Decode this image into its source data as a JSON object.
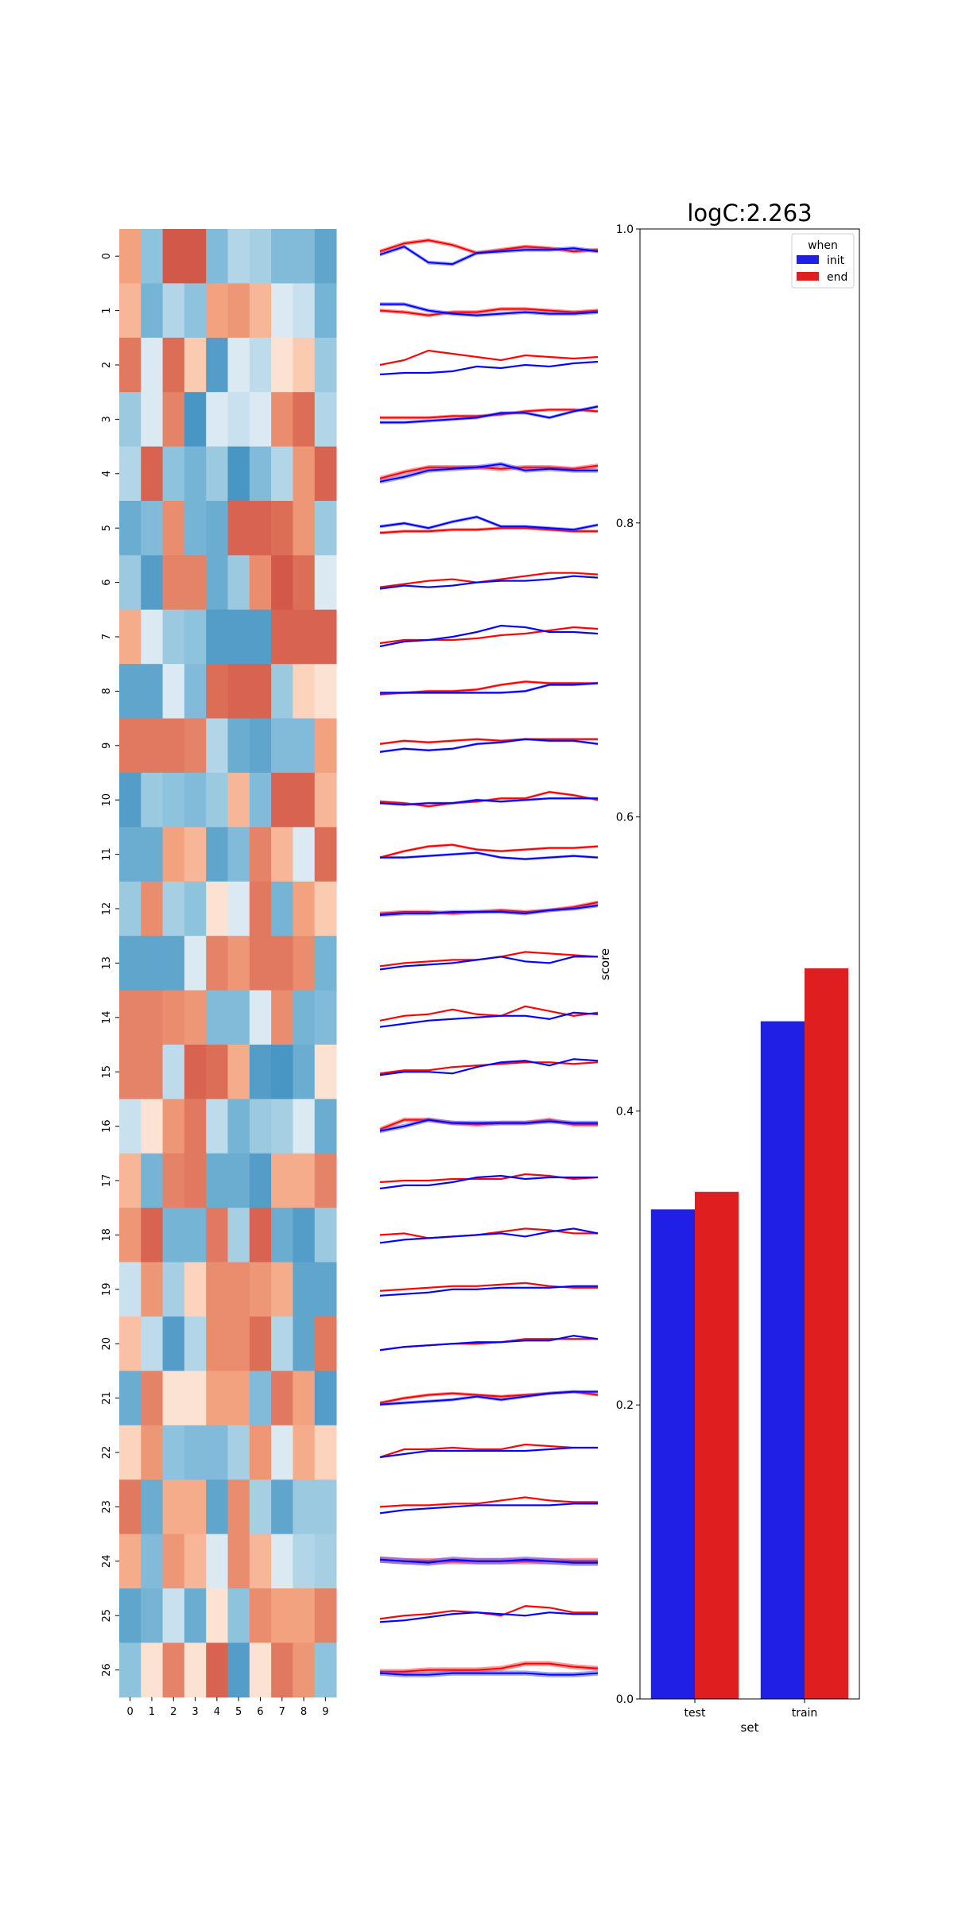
{
  "chart_data": [
    {
      "type": "heatmap",
      "colormap": "RdBu_r",
      "x_tick_labels": [
        "0",
        "1",
        "2",
        "3",
        "4",
        "5",
        "6",
        "7",
        "8",
        "9"
      ],
      "y_tick_labels": [
        "0",
        "1",
        "2",
        "3",
        "4",
        "5",
        "6",
        "7",
        "8",
        "9",
        "10",
        "11",
        "12",
        "13",
        "14",
        "15",
        "16",
        "17",
        "18",
        "19",
        "20",
        "21",
        "22",
        "23",
        "24",
        "25",
        "26"
      ],
      "values": [
        [
          0.35,
          -0.35,
          0.7,
          0.7,
          -0.4,
          -0.2,
          -0.25,
          -0.4,
          -0.4,
          -0.55
        ],
        [
          0.25,
          -0.45,
          -0.2,
          -0.35,
          0.35,
          0.4,
          0.25,
          -0.05,
          -0.1,
          -0.45
        ],
        [
          0.55,
          -0.05,
          0.6,
          0.15,
          -0.6,
          -0.05,
          -0.15,
          0.05,
          0.15,
          -0.3
        ],
        [
          -0.3,
          -0.05,
          0.5,
          -0.65,
          -0.05,
          -0.1,
          -0.05,
          0.45,
          0.6,
          -0.2
        ],
        [
          -0.2,
          0.65,
          -0.35,
          -0.45,
          -0.3,
          -0.65,
          -0.4,
          -0.2,
          0.4,
          0.65
        ],
        [
          -0.5,
          -0.4,
          0.45,
          -0.45,
          -0.5,
          0.65,
          0.65,
          0.6,
          0.4,
          -0.3
        ],
        [
          -0.3,
          -0.6,
          0.5,
          0.5,
          -0.5,
          -0.3,
          0.45,
          0.7,
          0.6,
          -0.05
        ],
        [
          0.3,
          -0.05,
          -0.3,
          -0.35,
          -0.6,
          -0.6,
          -0.6,
          0.65,
          0.65,
          0.65
        ],
        [
          -0.55,
          -0.55,
          -0.05,
          -0.4,
          0.6,
          0.65,
          0.65,
          -0.3,
          0.1,
          0.05
        ],
        [
          0.55,
          0.55,
          0.55,
          0.5,
          -0.2,
          -0.5,
          -0.55,
          -0.4,
          -0.4,
          0.35
        ],
        [
          -0.6,
          -0.3,
          -0.35,
          -0.4,
          -0.3,
          0.25,
          -0.4,
          0.65,
          0.65,
          0.25
        ],
        [
          -0.5,
          -0.5,
          0.35,
          0.25,
          -0.55,
          -0.4,
          0.5,
          0.25,
          -0.05,
          0.6
        ],
        [
          -0.3,
          0.45,
          -0.25,
          -0.35,
          0.05,
          -0.05,
          0.55,
          -0.45,
          0.35,
          0.15
        ],
        [
          -0.55,
          -0.55,
          -0.55,
          -0.05,
          0.5,
          0.4,
          0.55,
          0.55,
          0.45,
          -0.45
        ],
        [
          0.5,
          0.5,
          0.45,
          0.4,
          -0.4,
          -0.4,
          -0.05,
          0.45,
          -0.45,
          -0.4
        ],
        [
          0.5,
          0.5,
          -0.15,
          0.65,
          0.6,
          0.3,
          -0.6,
          -0.65,
          -0.5,
          0.05
        ],
        [
          -0.1,
          0.05,
          0.4,
          0.55,
          -0.15,
          -0.45,
          -0.3,
          -0.25,
          -0.05,
          -0.5
        ],
        [
          0.25,
          -0.45,
          0.5,
          0.55,
          -0.5,
          -0.5,
          -0.6,
          0.3,
          0.3,
          0.5
        ],
        [
          0.4,
          0.65,
          -0.45,
          -0.45,
          0.55,
          -0.25,
          0.65,
          -0.5,
          -0.6,
          -0.3
        ],
        [
          -0.1,
          0.4,
          -0.25,
          0.1,
          0.45,
          0.45,
          0.4,
          0.3,
          -0.55,
          -0.55
        ],
        [
          0.2,
          -0.15,
          -0.6,
          -0.2,
          0.45,
          0.45,
          0.6,
          -0.2,
          -0.55,
          0.55
        ],
        [
          -0.5,
          0.5,
          0.05,
          0.05,
          0.35,
          0.35,
          -0.4,
          0.55,
          0.35,
          -0.6
        ],
        [
          0.1,
          0.4,
          -0.35,
          -0.4,
          -0.4,
          -0.25,
          0.4,
          -0.05,
          0.3,
          0.1
        ],
        [
          0.55,
          -0.5,
          0.3,
          0.3,
          -0.55,
          0.45,
          -0.25,
          -0.55,
          -0.3,
          -0.3
        ],
        [
          0.3,
          -0.4,
          0.4,
          0.25,
          -0.05,
          0.45,
          0.25,
          -0.05,
          -0.2,
          -0.25
        ],
        [
          -0.55,
          -0.45,
          -0.1,
          -0.5,
          0.05,
          -0.35,
          0.45,
          0.35,
          0.35,
          0.5
        ],
        [
          -0.35,
          0.05,
          0.5,
          0.05,
          0.65,
          -0.6,
          0.05,
          0.55,
          0.4,
          -0.35
        ]
      ]
    },
    {
      "type": "line",
      "small_multiples": true,
      "bands": true,
      "series_colors": {
        "init": "#0000ff",
        "end": "#ff0000"
      },
      "rows": [
        {
          "init": [
            0.55,
            0.8,
            0.3,
            0.25,
            0.6,
            0.65,
            0.7,
            0.7,
            0.75,
            0.65
          ],
          "end": [
            0.65,
            0.9,
            1.0,
            0.85,
            0.6,
            0.7,
            0.8,
            0.75,
            0.65,
            0.7
          ],
          "band": 0.12
        },
        {
          "init": [
            0.7,
            0.7,
            0.5,
            0.4,
            0.35,
            0.4,
            0.45,
            0.4,
            0.4,
            0.45
          ],
          "end": [
            0.5,
            0.45,
            0.35,
            0.45,
            0.45,
            0.55,
            0.55,
            0.5,
            0.45,
            0.5
          ],
          "band": 0.12
        },
        {
          "init": [
            0.2,
            0.25,
            0.25,
            0.3,
            0.45,
            0.4,
            0.5,
            0.45,
            0.55,
            0.6
          ],
          "end": [
            0.5,
            0.65,
            0.95,
            0.85,
            0.75,
            0.65,
            0.8,
            0.75,
            0.7,
            0.75
          ],
          "band": 0.06
        },
        {
          "init": [
            0.4,
            0.4,
            0.45,
            0.5,
            0.55,
            0.7,
            0.7,
            0.55,
            0.75,
            0.9
          ],
          "end": [
            0.55,
            0.55,
            0.55,
            0.6,
            0.6,
            0.65,
            0.75,
            0.8,
            0.8,
            0.75
          ],
          "band": 0.1
        },
        {
          "init": [
            0.25,
            0.4,
            0.6,
            0.65,
            0.7,
            0.8,
            0.6,
            0.65,
            0.6,
            0.6
          ],
          "end": [
            0.35,
            0.55,
            0.7,
            0.7,
            0.7,
            0.65,
            0.7,
            0.7,
            0.65,
            0.75
          ],
          "band": 0.14
        },
        {
          "init": [
            0.55,
            0.65,
            0.5,
            0.7,
            0.85,
            0.55,
            0.55,
            0.5,
            0.45,
            0.6
          ],
          "end": [
            0.35,
            0.4,
            0.4,
            0.45,
            0.45,
            0.5,
            0.5,
            0.45,
            0.4,
            0.4
          ],
          "band": 0.1
        },
        {
          "init": [
            0.3,
            0.4,
            0.35,
            0.4,
            0.5,
            0.55,
            0.55,
            0.6,
            0.7,
            0.65
          ],
          "end": [
            0.35,
            0.45,
            0.55,
            0.6,
            0.5,
            0.6,
            0.7,
            0.8,
            0.8,
            0.75
          ],
          "band": 0.06
        },
        {
          "init": [
            0.2,
            0.35,
            0.4,
            0.5,
            0.65,
            0.85,
            0.8,
            0.65,
            0.65,
            0.6
          ],
          "end": [
            0.3,
            0.4,
            0.4,
            0.4,
            0.45,
            0.55,
            0.6,
            0.7,
            0.8,
            0.75
          ],
          "band": 0.06
        },
        {
          "init": [
            0.45,
            0.45,
            0.45,
            0.45,
            0.45,
            0.45,
            0.5,
            0.7,
            0.7,
            0.75
          ],
          "end": [
            0.4,
            0.45,
            0.5,
            0.5,
            0.55,
            0.7,
            0.8,
            0.75,
            0.75,
            0.75
          ],
          "band": 0.08
        },
        {
          "init": [
            0.3,
            0.4,
            0.35,
            0.4,
            0.55,
            0.6,
            0.7,
            0.65,
            0.65,
            0.55
          ],
          "end": [
            0.55,
            0.65,
            0.6,
            0.65,
            0.7,
            0.65,
            0.7,
            0.7,
            0.7,
            0.7
          ],
          "band": 0.08
        },
        {
          "init": [
            0.4,
            0.35,
            0.4,
            0.4,
            0.5,
            0.45,
            0.5,
            0.55,
            0.55,
            0.55
          ],
          "end": [
            0.45,
            0.4,
            0.3,
            0.4,
            0.45,
            0.55,
            0.55,
            0.75,
            0.65,
            0.5
          ],
          "band": 0.08
        },
        {
          "init": [
            0.4,
            0.4,
            0.45,
            0.5,
            0.55,
            0.4,
            0.35,
            0.4,
            0.45,
            0.4
          ],
          "end": [
            0.4,
            0.6,
            0.75,
            0.8,
            0.65,
            0.6,
            0.65,
            0.7,
            0.7,
            0.75
          ],
          "band": 0.08
        },
        {
          "init": [
            0.3,
            0.35,
            0.35,
            0.4,
            0.4,
            0.4,
            0.35,
            0.45,
            0.5,
            0.6
          ],
          "end": [
            0.35,
            0.4,
            0.4,
            0.35,
            0.4,
            0.45,
            0.4,
            0.45,
            0.55,
            0.7
          ],
          "band": 0.12
        },
        {
          "init": [
            0.3,
            0.4,
            0.45,
            0.5,
            0.6,
            0.7,
            0.55,
            0.5,
            0.7,
            0.7
          ],
          "end": [
            0.4,
            0.5,
            0.55,
            0.6,
            0.6,
            0.7,
            0.85,
            0.8,
            0.75,
            0.7
          ],
          "band": 0.06
        },
        {
          "init": [
            0.2,
            0.3,
            0.4,
            0.45,
            0.5,
            0.55,
            0.55,
            0.45,
            0.65,
            0.6
          ],
          "end": [
            0.4,
            0.55,
            0.6,
            0.75,
            0.6,
            0.55,
            0.85,
            0.7,
            0.55,
            0.65
          ],
          "band": 0.06
        },
        {
          "init": [
            0.4,
            0.5,
            0.5,
            0.45,
            0.65,
            0.8,
            0.85,
            0.7,
            0.9,
            0.85
          ],
          "end": [
            0.45,
            0.55,
            0.55,
            0.65,
            0.7,
            0.75,
            0.8,
            0.8,
            0.75,
            0.8
          ],
          "band": 0.06
        },
        {
          "init": [
            0.35,
            0.5,
            0.7,
            0.6,
            0.6,
            0.6,
            0.6,
            0.65,
            0.6,
            0.6
          ],
          "end": [
            0.4,
            0.7,
            0.7,
            0.6,
            0.55,
            0.6,
            0.6,
            0.7,
            0.55,
            0.55
          ],
          "band": 0.14
        },
        {
          "init": [
            0.25,
            0.35,
            0.35,
            0.45,
            0.6,
            0.65,
            0.55,
            0.6,
            0.6,
            0.6
          ],
          "end": [
            0.45,
            0.5,
            0.5,
            0.55,
            0.55,
            0.55,
            0.7,
            0.65,
            0.55,
            0.6
          ],
          "band": 0.06
        },
        {
          "init": [
            0.25,
            0.35,
            0.4,
            0.45,
            0.5,
            0.55,
            0.45,
            0.6,
            0.7,
            0.55
          ],
          "end": [
            0.5,
            0.55,
            0.4,
            0.45,
            0.5,
            0.6,
            0.7,
            0.65,
            0.55,
            0.55
          ],
          "band": 0.06
        },
        {
          "init": [
            0.3,
            0.35,
            0.4,
            0.5,
            0.5,
            0.55,
            0.55,
            0.55,
            0.6,
            0.6
          ],
          "end": [
            0.45,
            0.5,
            0.55,
            0.6,
            0.6,
            0.65,
            0.7,
            0.6,
            0.55,
            0.55
          ],
          "band": 0.06
        },
        {
          "init": [
            0.3,
            0.4,
            0.45,
            0.5,
            0.55,
            0.55,
            0.6,
            0.6,
            0.75,
            0.65
          ],
          "end": [
            0.3,
            0.4,
            0.45,
            0.5,
            0.5,
            0.55,
            0.65,
            0.65,
            0.65,
            0.65
          ],
          "band": 0.06
        },
        {
          "init": [
            0.3,
            0.35,
            0.4,
            0.45,
            0.55,
            0.45,
            0.55,
            0.65,
            0.7,
            0.7
          ],
          "end": [
            0.35,
            0.5,
            0.6,
            0.65,
            0.6,
            0.55,
            0.6,
            0.65,
            0.7,
            0.6
          ],
          "band": 0.1
        },
        {
          "init": [
            0.35,
            0.45,
            0.55,
            0.55,
            0.55,
            0.55,
            0.55,
            0.6,
            0.65,
            0.65
          ],
          "end": [
            0.35,
            0.6,
            0.6,
            0.65,
            0.6,
            0.6,
            0.75,
            0.7,
            0.65,
            0.65
          ],
          "band": 0.06
        },
        {
          "init": [
            0.3,
            0.4,
            0.45,
            0.5,
            0.55,
            0.55,
            0.55,
            0.55,
            0.6,
            0.6
          ],
          "end": [
            0.5,
            0.55,
            0.55,
            0.6,
            0.6,
            0.7,
            0.8,
            0.7,
            0.65,
            0.65
          ],
          "band": 0.06
        },
        {
          "init": [
            0.55,
            0.5,
            0.45,
            0.55,
            0.5,
            0.5,
            0.55,
            0.5,
            0.45,
            0.45
          ],
          "end": [
            0.55,
            0.5,
            0.5,
            0.5,
            0.5,
            0.5,
            0.5,
            0.5,
            0.5,
            0.5
          ],
          "band": 0.2
        },
        {
          "init": [
            0.3,
            0.35,
            0.45,
            0.55,
            0.6,
            0.55,
            0.5,
            0.6,
            0.55,
            0.55
          ],
          "end": [
            0.4,
            0.5,
            0.55,
            0.65,
            0.6,
            0.5,
            0.8,
            0.75,
            0.6,
            0.6
          ],
          "band": 0.06
        },
        {
          "init": [
            0.4,
            0.35,
            0.35,
            0.4,
            0.4,
            0.4,
            0.4,
            0.35,
            0.35,
            0.4
          ],
          "end": [
            0.45,
            0.45,
            0.5,
            0.5,
            0.5,
            0.55,
            0.7,
            0.7,
            0.6,
            0.55
          ],
          "band": 0.16
        }
      ]
    },
    {
      "type": "bar",
      "title": "logC:2.263",
      "xlabel": "set",
      "ylabel": "score",
      "categories": [
        "test",
        "train"
      ],
      "series": [
        {
          "name": "init",
          "color": "#1f1fe6",
          "values": [
            0.333,
            0.461
          ]
        },
        {
          "name": "end",
          "color": "#df1f1f",
          "values": [
            0.345,
            0.497
          ]
        }
      ],
      "ylim": [
        0.0,
        1.0
      ],
      "yticks": [
        "0.0",
        "0.2",
        "0.4",
        "0.6",
        "0.8",
        "1.0"
      ],
      "legend": {
        "title": "when",
        "placement": "top-right"
      }
    }
  ]
}
